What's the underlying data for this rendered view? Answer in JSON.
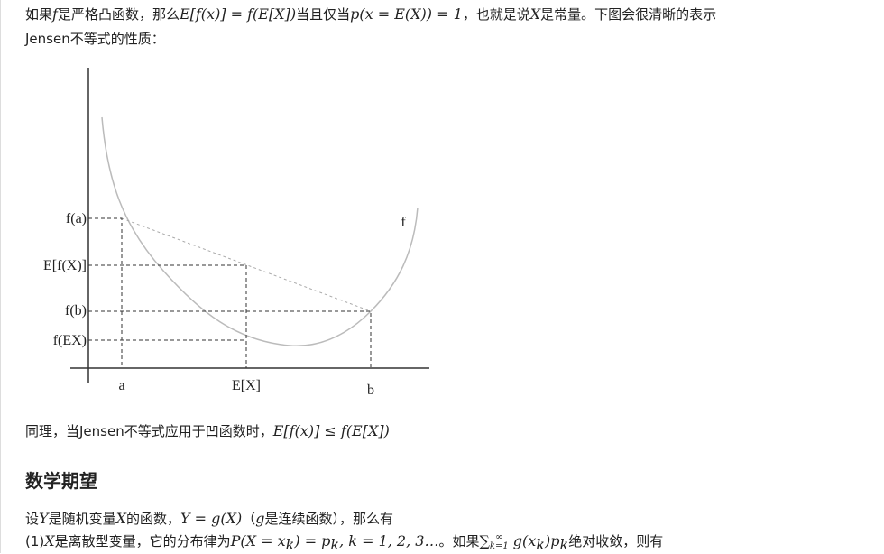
{
  "line1": [
    "如果",
    "f",
    "是严格凸函数，那么",
    "E[f(x)] = f(E[X])",
    "当且仅当",
    "p(x = E(X)) = 1",
    "，也就是说",
    "X",
    "是常量。下图会很清晰的表示"
  ],
  "line2": "Jensen不等式的性质：",
  "figure": {
    "y_labels": [
      "f(a)",
      "E[f(X)]",
      "f(b)",
      "f(EX)"
    ],
    "x_labels": [
      "a",
      "E[X]",
      "b"
    ],
    "curve_label": "f"
  },
  "line3": [
    "同理，当Jensen不等式应用于凹函数时，",
    "E[f(x)] ≤ f(E[X])"
  ],
  "heading": "数学期望",
  "line4": [
    "设",
    "Y",
    "是随机变量",
    "X",
    "的函数，",
    "Y = g(X)",
    "（",
    "g",
    "是连续函数），那么有"
  ],
  "line5": [
    "(1)",
    "X",
    "是离散型变量，它的分布律为",
    "P(X = x",
    "k",
    ") = p",
    "k",
    ", k = 1, 2, 3…",
    "。如果",
    "∑",
    "k=1",
    "∞",
    " g(x",
    "k",
    ")p",
    "k",
    "绝对收敛，则有"
  ]
}
